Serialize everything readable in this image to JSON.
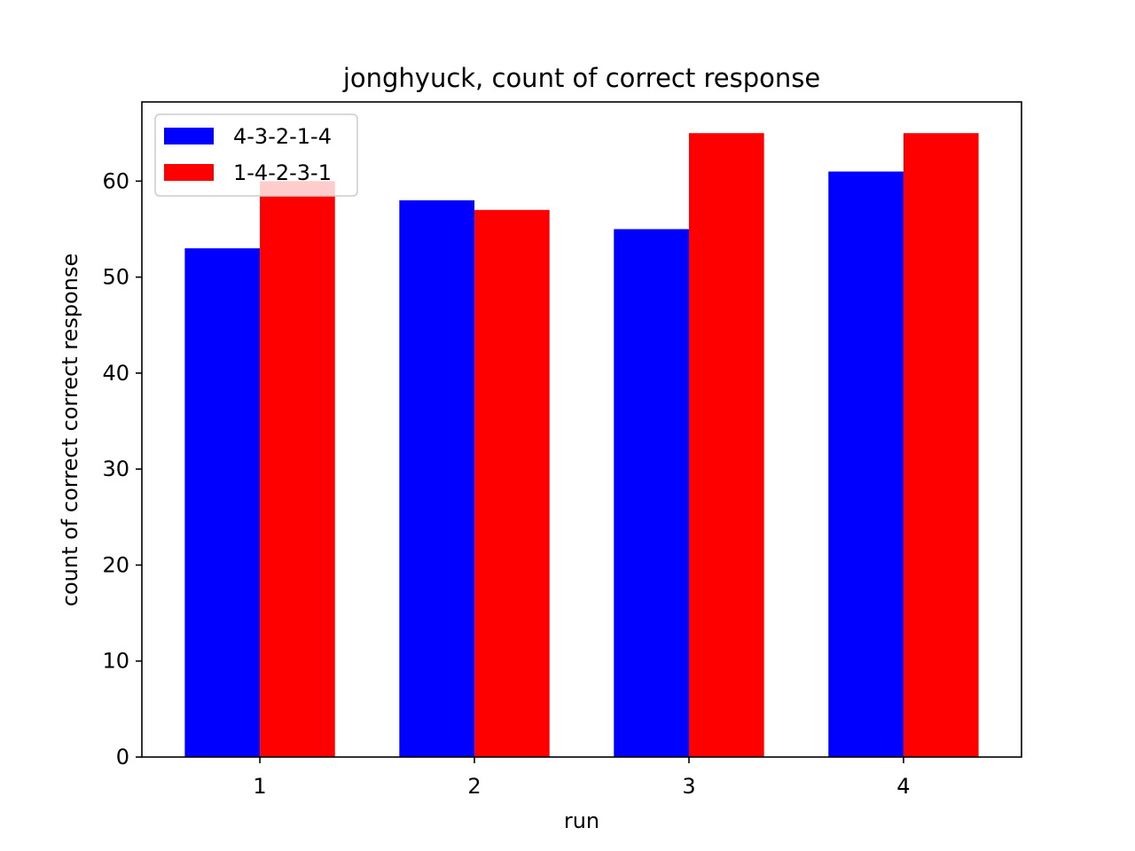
{
  "chart_data": {
    "type": "bar",
    "title": "jonghyuck, count of correct response",
    "xlabel": "run",
    "ylabel": "count of correct correct response",
    "categories": [
      "1",
      "2",
      "3",
      "4"
    ],
    "series": [
      {
        "name": "4-3-2-1-4",
        "color": "#0000ff",
        "values": [
          53,
          58,
          55,
          61
        ]
      },
      {
        "name": "1-4-2-3-1",
        "color": "#ff0000",
        "values": [
          60,
          57,
          65,
          65
        ]
      }
    ],
    "ylim": [
      0,
      68.25
    ],
    "yticks": [
      0,
      10,
      20,
      30,
      40,
      50,
      60
    ],
    "grid": false,
    "legend_position": "top-left"
  }
}
